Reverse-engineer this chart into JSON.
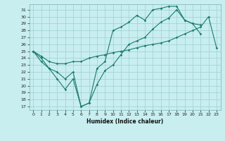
{
  "xlabel": "Humidex (Indice chaleur)",
  "background_color": "#c8eef0",
  "grid_color": "#9ecfcf",
  "line_color": "#1a7a6e",
  "xlim": [
    -0.5,
    23.5
  ],
  "ylim": [
    16.5,
    31.8
  ],
  "yticks": [
    17,
    18,
    19,
    20,
    21,
    22,
    23,
    24,
    25,
    26,
    27,
    28,
    29,
    30,
    31
  ],
  "xticks": [
    0,
    1,
    2,
    3,
    4,
    5,
    6,
    7,
    8,
    9,
    10,
    11,
    12,
    13,
    14,
    15,
    16,
    17,
    18,
    19,
    20,
    21,
    22,
    23
  ],
  "line1_x": [
    0,
    1,
    2,
    3,
    4,
    5,
    6,
    7,
    8,
    9,
    10,
    11,
    12,
    13,
    14,
    15,
    16,
    17,
    18,
    19,
    20,
    21
  ],
  "line1_y": [
    25,
    23.5,
    22.5,
    21,
    19.5,
    21,
    17,
    17.5,
    20.2,
    22.2,
    23,
    24.5,
    26,
    26.5,
    27,
    28.2,
    29.2,
    29.8,
    31,
    29.5,
    29,
    27.5
  ],
  "line2_x": [
    0,
    1,
    2,
    3,
    4,
    5,
    6,
    7,
    8,
    9,
    10,
    11,
    12,
    13,
    14,
    15,
    16,
    17,
    18,
    19,
    20,
    21,
    22,
    23
  ],
  "line2_y": [
    25,
    24,
    22.5,
    22,
    21,
    22,
    17,
    17.5,
    22.5,
    23.5,
    28,
    28.5,
    29.2,
    30.2,
    29.5,
    31,
    31.2,
    31.5,
    31.5,
    29.5,
    29,
    28.8,
    null,
    null
  ],
  "line3_x": [
    0,
    1,
    2,
    3,
    4,
    5,
    6,
    7,
    8,
    9,
    10,
    11,
    12,
    13,
    14,
    15,
    16,
    17,
    18,
    19,
    20,
    21,
    22,
    23
  ],
  "line3_y": [
    25,
    24.3,
    23.5,
    23.2,
    23.2,
    23.5,
    23.5,
    24,
    24.3,
    24.5,
    24.8,
    25,
    25.2,
    25.5,
    25.8,
    26,
    26.2,
    26.5,
    27,
    27.5,
    28,
    28.5,
    30,
    25.5
  ]
}
